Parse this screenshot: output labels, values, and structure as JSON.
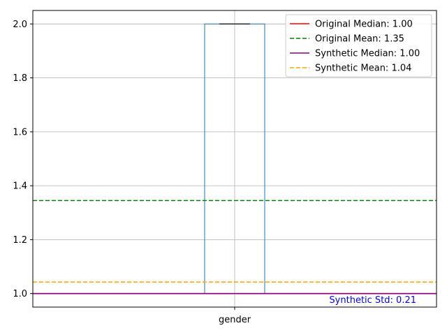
{
  "chart_data": {
    "type": "box",
    "title": "",
    "xlabel": "",
    "ylabel": "",
    "categories": [
      "gender"
    ],
    "ylim": [
      0.95,
      2.05
    ],
    "yticks": [
      1.0,
      1.2,
      1.4,
      1.6,
      1.8,
      2.0
    ],
    "ytick_labels": [
      "1.0",
      "1.2",
      "1.4",
      "1.6",
      "1.8",
      "2.0"
    ],
    "grid": true,
    "box": {
      "category": "gender",
      "min": 1.0,
      "q1": 1.0,
      "median": 1.0,
      "q3": 2.0,
      "max": 2.0,
      "color": "#1f77b4",
      "median_color": "#2ca02c"
    },
    "reference_lines": [
      {
        "label": "Original Median: 1.00",
        "value": 1.0,
        "color": "#ff0000",
        "dashed": false
      },
      {
        "label": "Original Mean: 1.35",
        "value": 1.345,
        "color": "#008000",
        "dashed": true
      },
      {
        "label": "Synthetic Median: 1.00",
        "value": 1.0,
        "color": "#800080",
        "dashed": false
      },
      {
        "label": "Synthetic Mean: 1.04",
        "value": 1.043,
        "color": "#ffa500",
        "dashed": true
      }
    ],
    "legend_position": "top-right",
    "annotation": {
      "text": "Synthetic Std: 0.21",
      "color": "#0000ff"
    }
  }
}
